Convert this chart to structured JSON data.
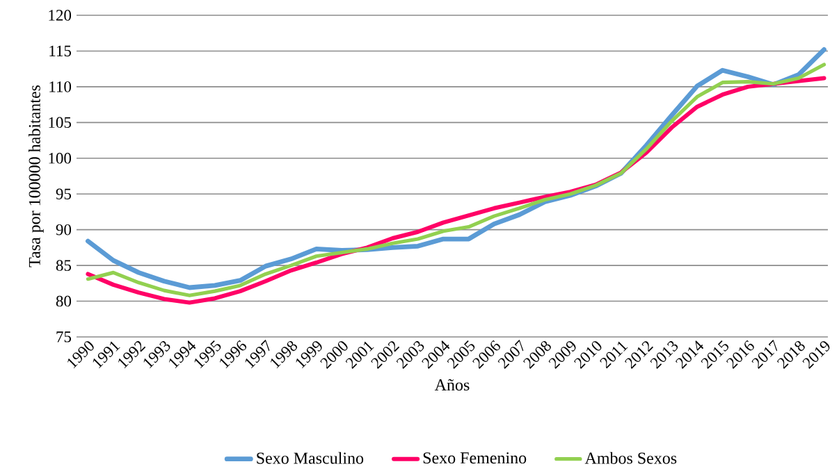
{
  "chart_data": {
    "type": "line",
    "xlabel": "Años",
    "ylabel": "Tasa por 100000 habitantes",
    "categories": [
      "1990",
      "1991",
      "1992",
      "1993",
      "1994",
      "1995",
      "1996",
      "1997",
      "1998",
      "1999",
      "2000",
      "2001",
      "2002",
      "2003",
      "2004",
      "2005",
      "2006",
      "2007",
      "2008",
      "2009",
      "2010",
      "2011",
      "2012",
      "2013",
      "2014",
      "2015",
      "2016",
      "2017",
      "2018",
      "2019"
    ],
    "series": [
      {
        "name": "Sexo Masculino",
        "color": "#5b9bd5",
        "values": [
          88.4,
          85.7,
          84.0,
          82.8,
          81.9,
          82.2,
          82.9,
          84.9,
          85.9,
          87.3,
          87.1,
          87.2,
          87.5,
          87.7,
          88.7,
          88.7,
          90.8,
          92.1,
          93.9,
          94.8,
          96.1,
          97.9,
          101.8,
          106.0,
          110.1,
          112.3,
          111.4,
          110.3,
          111.7,
          115.2
        ]
      },
      {
        "name": "Sexo Femenino",
        "color": "#ff0066",
        "values": [
          83.8,
          82.3,
          81.2,
          80.3,
          79.8,
          80.4,
          81.4,
          82.8,
          84.3,
          85.4,
          86.6,
          87.5,
          88.8,
          89.7,
          91.0,
          92.0,
          93.0,
          93.8,
          94.6,
          95.3,
          96.3,
          98.0,
          100.8,
          104.3,
          107.2,
          108.9,
          110.0,
          110.4,
          110.8,
          111.2
        ]
      },
      {
        "name": "Ambos Sexos",
        "color": "#92d050",
        "values": [
          83.1,
          84.0,
          82.6,
          81.5,
          80.8,
          81.4,
          82.2,
          83.8,
          85.0,
          86.3,
          86.8,
          87.3,
          88.1,
          88.7,
          89.8,
          90.4,
          91.9,
          93.0,
          94.2,
          95.0,
          96.2,
          97.9,
          101.3,
          105.2,
          108.6,
          110.6,
          110.7,
          110.4,
          111.2,
          113.1
        ]
      }
    ],
    "ylim": [
      75,
      120
    ],
    "yticks": [
      75,
      80,
      85,
      90,
      95,
      100,
      105,
      110,
      115,
      120
    ],
    "grid": "y",
    "legend": "bottom",
    "marker": "none",
    "line_style": "solid"
  }
}
